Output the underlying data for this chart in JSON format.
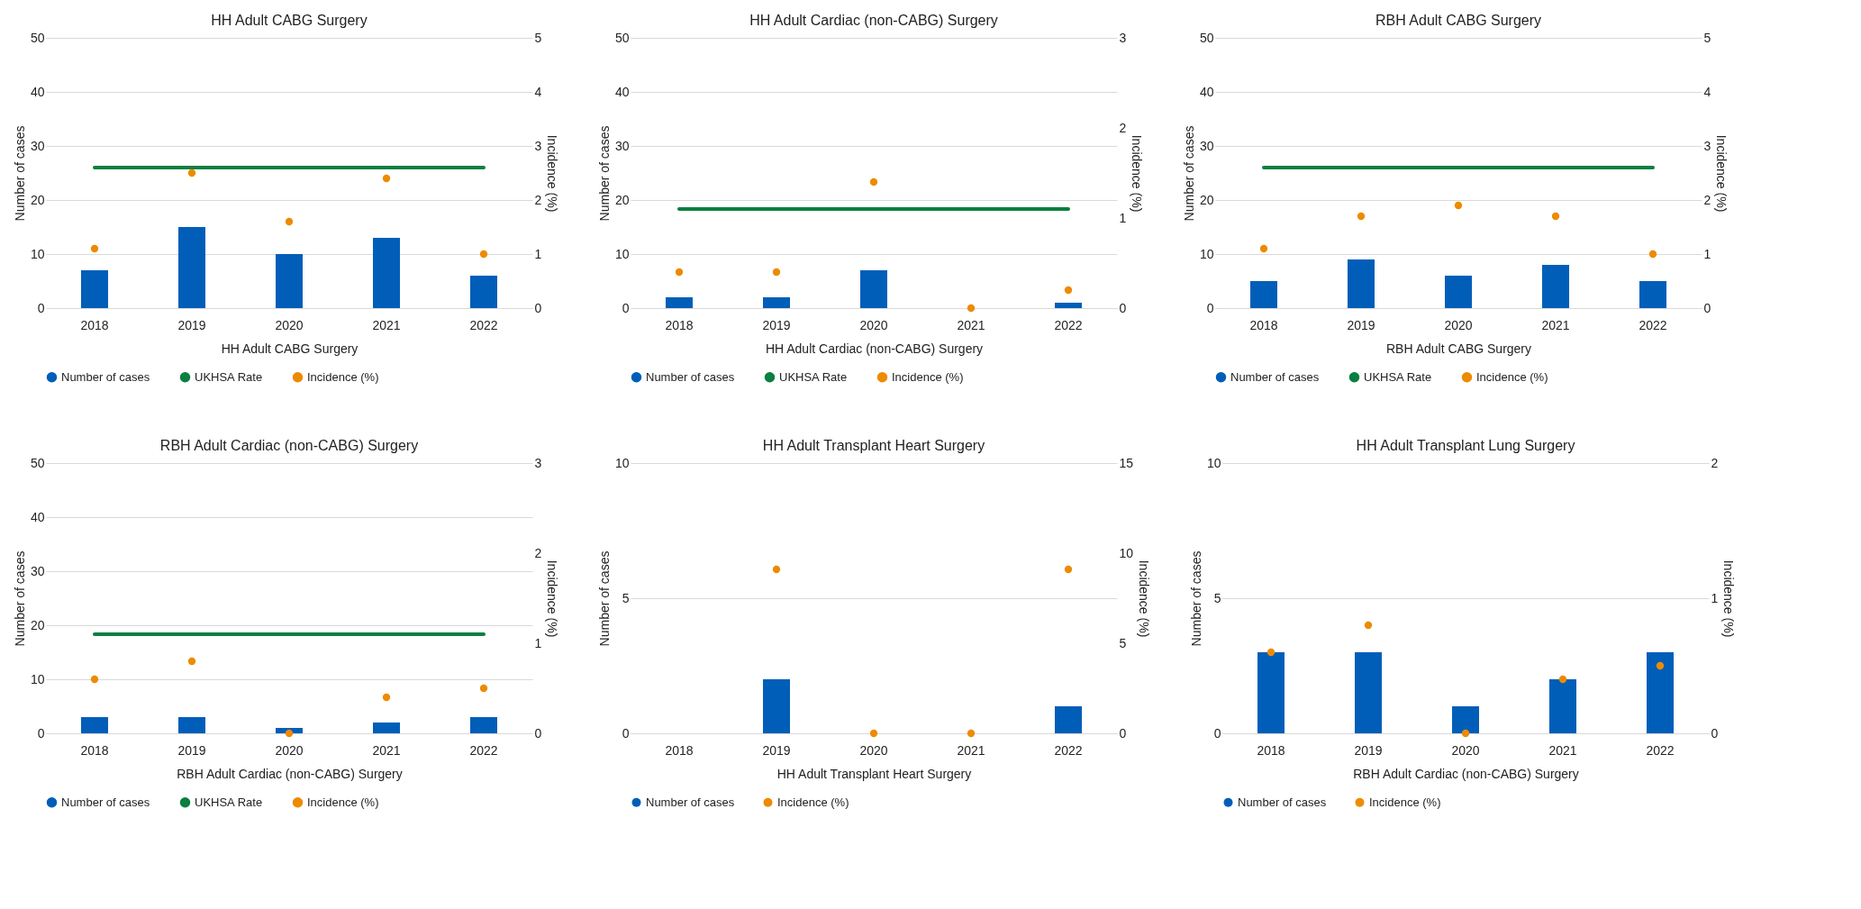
{
  "chart_data": [
    {
      "type": "bar",
      "title": "HH Adult CABG Surgery",
      "xlabel": "HH Adult CABG Surgery",
      "ylabel": "Number of cases",
      "y2label": "Incidence (%)",
      "categories": [
        "2018",
        "2019",
        "2020",
        "2021",
        "2022"
      ],
      "ylim": [
        0,
        50
      ],
      "yticks": [
        0,
        10,
        20,
        30,
        40,
        50
      ],
      "y2lim": [
        0,
        5
      ],
      "y2ticks": [
        0,
        1,
        2,
        3,
        4,
        5
      ],
      "grid": "y",
      "legend": "bottom",
      "series": [
        {
          "name": "Number of cases",
          "color": "#005eb8",
          "values": [
            7,
            15,
            10,
            13,
            6
          ]
        },
        {
          "name": "UKHSA Rate",
          "type": "line",
          "axis": "y2",
          "color": "#0a7f3f",
          "values": [
            2.6,
            2.6,
            2.6,
            2.6,
            2.6
          ]
        },
        {
          "name": "Incidence (%)",
          "type": "scatter",
          "axis": "y2",
          "color": "#ed8b00",
          "values": [
            1.1,
            2.5,
            1.6,
            2.4,
            1.0
          ]
        }
      ]
    },
    {
      "type": "bar",
      "title": "HH Adult Cardiac (non-CABG) Surgery",
      "xlabel": "HH Adult Cardiac (non-CABG) Surgery",
      "ylabel": "Number of cases",
      "y2label": "Incidence (%)",
      "categories": [
        "2018",
        "2019",
        "2020",
        "2021",
        "2022"
      ],
      "ylim": [
        0,
        50
      ],
      "yticks": [
        0,
        10,
        20,
        30,
        40,
        50
      ],
      "y2lim": [
        0,
        3
      ],
      "y2ticks": [
        0,
        1,
        2,
        3
      ],
      "grid": "y",
      "legend": "bottom",
      "series": [
        {
          "name": "Number of cases",
          "color": "#005eb8",
          "values": [
            2,
            2,
            7,
            0,
            1
          ]
        },
        {
          "name": "UKHSA Rate",
          "type": "line",
          "axis": "y2",
          "color": "#0a7f3f",
          "values": [
            1.1,
            1.1,
            1.1,
            1.1,
            1.1
          ]
        },
        {
          "name": "Incidence (%)",
          "type": "scatter",
          "axis": "y2",
          "color": "#ed8b00",
          "values": [
            0.4,
            0.4,
            1.4,
            0,
            0.2
          ]
        }
      ]
    },
    {
      "type": "bar",
      "title": "RBH Adult CABG Surgery",
      "xlabel": "RBH Adult CABG Surgery",
      "ylabel": "Number of cases",
      "y2label": "Incidence (%)",
      "categories": [
        "2018",
        "2019",
        "2020",
        "2021",
        "2022"
      ],
      "ylim": [
        0,
        50
      ],
      "yticks": [
        0,
        10,
        20,
        30,
        40,
        50
      ],
      "y2lim": [
        0,
        5
      ],
      "y2ticks": [
        0,
        1,
        2,
        3,
        4,
        5
      ],
      "grid": "y",
      "legend": "bottom",
      "series": [
        {
          "name": "Number of cases",
          "color": "#005eb8",
          "values": [
            5,
            9,
            6,
            8,
            5
          ]
        },
        {
          "name": "UKHSA Rate",
          "type": "line",
          "axis": "y2",
          "color": "#0a7f3f",
          "values": [
            2.6,
            2.6,
            2.6,
            2.6,
            2.6
          ]
        },
        {
          "name": "Incidence (%)",
          "type": "scatter",
          "axis": "y2",
          "color": "#ed8b00",
          "values": [
            1.1,
            1.7,
            1.9,
            1.7,
            1.0
          ]
        }
      ]
    },
    {
      "type": "bar",
      "title": "RBH Adult Cardiac (non-CABG) Surgery",
      "xlabel": "RBH Adult Cardiac (non-CABG) Surgery",
      "ylabel": "Number of cases",
      "y2label": "Incidence (%)",
      "categories": [
        "2018",
        "2019",
        "2020",
        "2021",
        "2022"
      ],
      "ylim": [
        0,
        50
      ],
      "yticks": [
        0,
        10,
        20,
        30,
        40,
        50
      ],
      "y2lim": [
        0,
        3
      ],
      "y2ticks": [
        0,
        1,
        2,
        3
      ],
      "grid": "y",
      "legend": "bottom",
      "series": [
        {
          "name": "Number of cases",
          "color": "#005eb8",
          "values": [
            3,
            3,
            1,
            2,
            3
          ]
        },
        {
          "name": "UKHSA Rate",
          "type": "line",
          "axis": "y2",
          "color": "#0a7f3f",
          "values": [
            1.1,
            1.1,
            1.1,
            1.1,
            1.1
          ]
        },
        {
          "name": "Incidence (%)",
          "type": "scatter",
          "axis": "y2",
          "color": "#ed8b00",
          "values": [
            0.6,
            0.8,
            0,
            0.4,
            0.5
          ]
        }
      ]
    },
    {
      "type": "bar",
      "title": "HH Adult Transplant Heart Surgery",
      "xlabel": "HH Adult Transplant Heart Surgery",
      "ylabel": "Number of cases",
      "y2label": "Incidence (%)",
      "categories": [
        "2018",
        "2019",
        "2020",
        "2021",
        "2022"
      ],
      "ylim": [
        0,
        10
      ],
      "yticks": [
        0,
        5,
        10
      ],
      "y2lim": [
        0,
        15
      ],
      "y2ticks": [
        0,
        5,
        10,
        15
      ],
      "grid": "y",
      "legend": "bottom",
      "series": [
        {
          "name": "Number of cases",
          "color": "#005eb8",
          "values": [
            null,
            2,
            0,
            0,
            1
          ]
        },
        {
          "name": "Incidence (%)",
          "type": "scatter",
          "axis": "y2",
          "color": "#ed8b00",
          "values": [
            null,
            9.1,
            0,
            0,
            9.1
          ]
        }
      ]
    },
    {
      "type": "bar",
      "title": "HH Adult Transplant Lung Surgery",
      "xlabel": "RBH Adult Cardiac (non-CABG) Surgery",
      "ylabel": "Number of cases",
      "y2label": "Incidence (%)",
      "categories": [
        "2018",
        "2019",
        "2020",
        "2021",
        "2022"
      ],
      "ylim": [
        0,
        10
      ],
      "yticks": [
        0,
        5,
        10
      ],
      "y2lim": [
        0,
        2
      ],
      "y2ticks": [
        0,
        1,
        2
      ],
      "grid": "y",
      "legend": "bottom",
      "series": [
        {
          "name": "Number of cases",
          "color": "#005eb8",
          "values": [
            3,
            3,
            1,
            2,
            3
          ]
        },
        {
          "name": "Incidence (%)",
          "type": "scatter",
          "axis": "y2",
          "color": "#ed8b00",
          "values": [
            0.6,
            0.8,
            0,
            0.4,
            0.5
          ]
        }
      ]
    }
  ]
}
